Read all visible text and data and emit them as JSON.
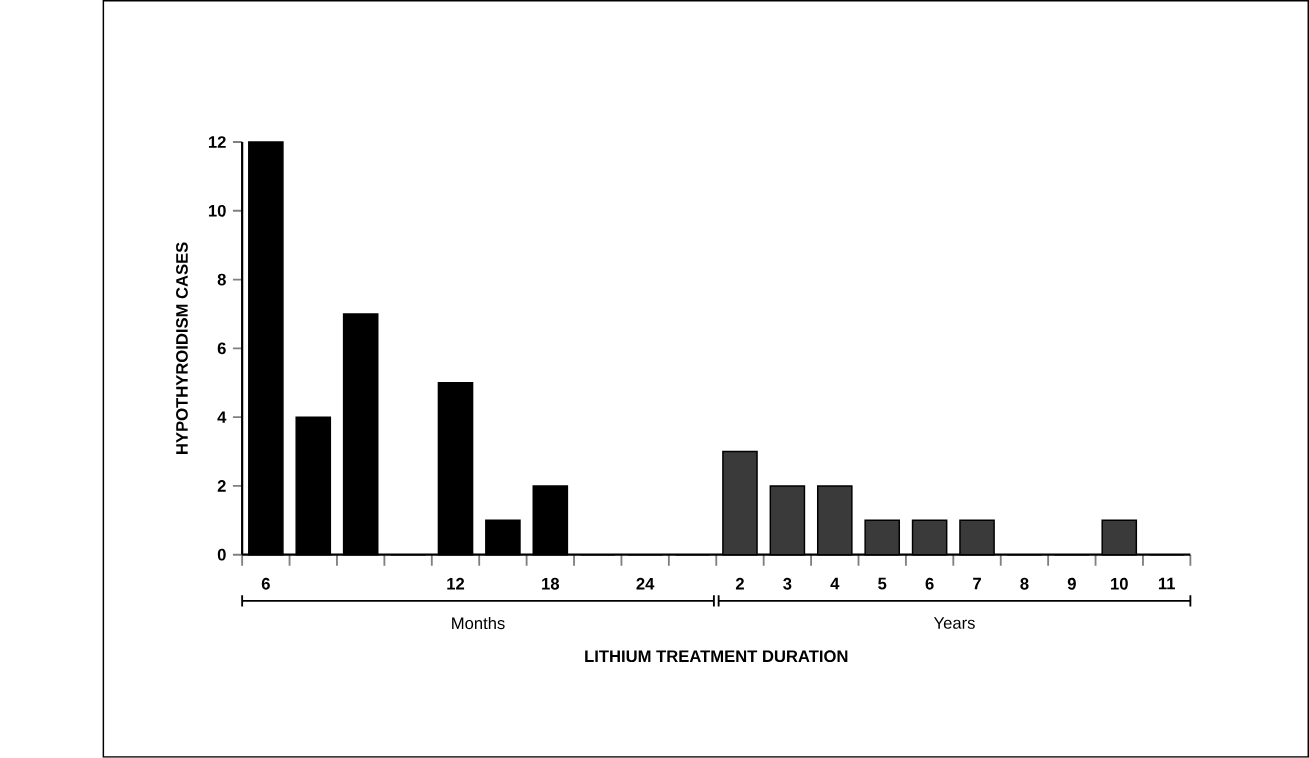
{
  "chart_data": {
    "type": "bar",
    "xlabel": "LITHIUM TREATMENT DURATION",
    "ylabel": "HYPOTHYROIDISM CASES",
    "categories": [
      "6",
      null,
      null,
      null,
      "12",
      null,
      "18",
      null,
      "24",
      null,
      "2",
      "3",
      "4",
      "5",
      "6",
      "7",
      "8",
      "9",
      "10",
      "11"
    ],
    "values": [
      12,
      4,
      7,
      0,
      5,
      1,
      2,
      0,
      0,
      0,
      3,
      2,
      2,
      1,
      1,
      1,
      0,
      0,
      1,
      0
    ],
    "colors": [
      "#000000",
      "#000000",
      "#000000",
      "#000000",
      "#000000",
      "#000000",
      "#000000",
      "#000000",
      "#000000",
      "#000000",
      "#3a3a3a",
      "#3a3a3a",
      "#3a3a3a",
      "#3a3a3a",
      "#3a3a3a",
      "#3a3a3a",
      "#3a3a3a",
      "#3a3a3a",
      "#3a3a3a",
      "#3a3a3a"
    ],
    "ylim": [
      0,
      12
    ],
    "yticks": [
      0,
      2,
      4,
      6,
      8,
      10,
      12
    ],
    "annotations": [
      "Months",
      "Years"
    ],
    "grid": false
  }
}
